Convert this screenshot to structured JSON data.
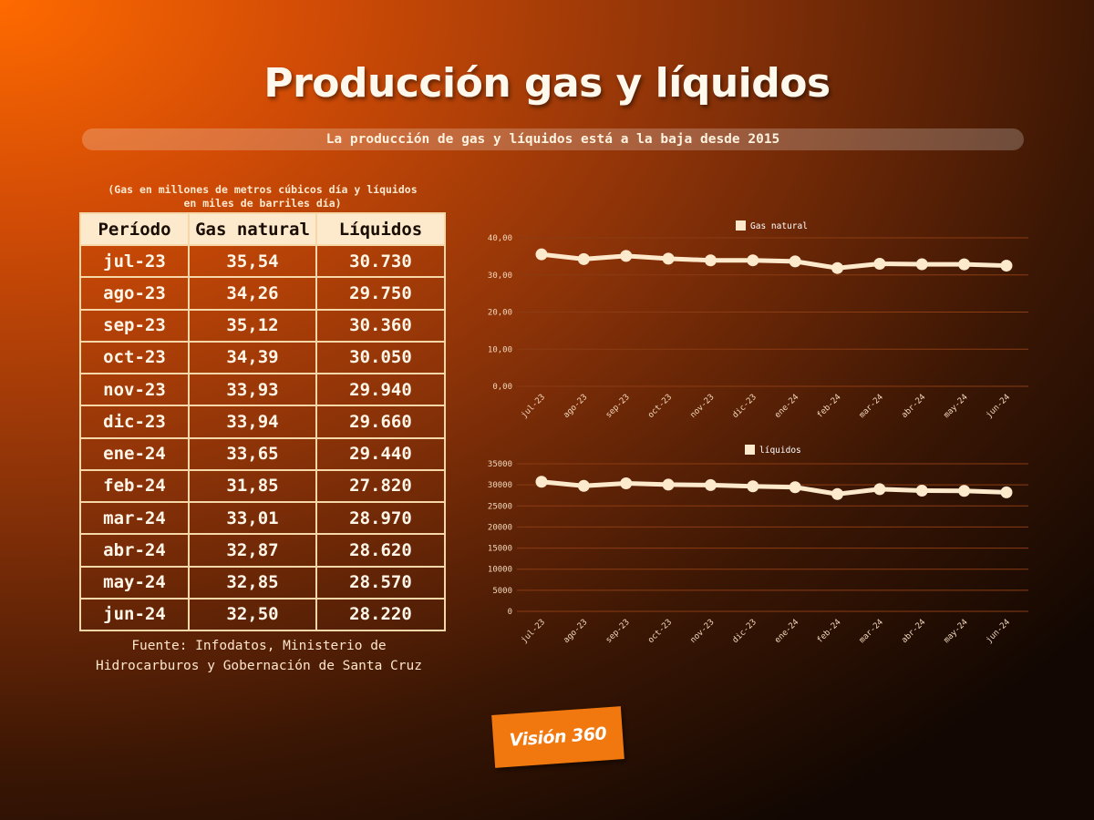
{
  "title": "Producción gas y líquidos",
  "subtitle": "La producción de gas y líquidos está a la baja desde 2015",
  "table": {
    "note_line1": "(Gas en millones de metros cúbicos día y líquidos",
    "note_line2": "en miles de barriles día)",
    "headers": [
      "Período",
      "Gas natural",
      "Líquidos"
    ],
    "rows": [
      [
        "jul-23",
        "35,54",
        "30.730"
      ],
      [
        "ago-23",
        "34,26",
        "29.750"
      ],
      [
        "sep-23",
        "35,12",
        "30.360"
      ],
      [
        "oct-23",
        "34,39",
        "30.050"
      ],
      [
        "nov-23",
        "33,93",
        "29.940"
      ],
      [
        "dic-23",
        "33,94",
        "29.660"
      ],
      [
        "ene-24",
        "33,65",
        "29.440"
      ],
      [
        "feb-24",
        "31,85",
        "27.820"
      ],
      [
        "mar-24",
        "33,01",
        "28.970"
      ],
      [
        "abr-24",
        "32,87",
        "28.620"
      ],
      [
        "may-24",
        "32,85",
        "28.570"
      ],
      [
        "jun-24",
        "32,50",
        "28.220"
      ]
    ]
  },
  "source_line1": "Fuente: Infodatos, Ministerio de",
  "source_line2": "Hidrocarburos y Gobernación de Santa Cruz",
  "logo_text": "Visión 360",
  "colors": {
    "line": "#fde9cc",
    "grid": "#8a3c14",
    "axis_text": "#f3d9bd"
  },
  "chart_data": [
    {
      "type": "line",
      "categories": [
        "jul-23",
        "ago-23",
        "sep-23",
        "oct-23",
        "nov-23",
        "dic-23",
        "ene-24",
        "feb-24",
        "mar-24",
        "abr-24",
        "may-24",
        "jun-24"
      ],
      "series": [
        {
          "name": "Gas natural",
          "values": [
            35.54,
            34.26,
            35.12,
            34.39,
            33.93,
            33.94,
            33.65,
            31.85,
            33.01,
            32.87,
            32.85,
            32.5
          ]
        }
      ],
      "yticks": [
        "0,00",
        "10,00",
        "20,00",
        "30,00",
        "40,00"
      ],
      "ylim": [
        0,
        40
      ],
      "legend": "top-center",
      "grid": true
    },
    {
      "type": "line",
      "categories": [
        "jul-23",
        "ago-23",
        "sep-23",
        "oct-23",
        "nov-23",
        "dic-23",
        "ene-24",
        "feb-24",
        "mar-24",
        "abr-24",
        "may-24",
        "jun-24"
      ],
      "series": [
        {
          "name": "líquidos",
          "values": [
            30730,
            29750,
            30360,
            30050,
            29940,
            29660,
            29440,
            27820,
            28970,
            28620,
            28570,
            28220
          ]
        }
      ],
      "yticks": [
        "0",
        "5000",
        "10000",
        "15000",
        "20000",
        "25000",
        "30000",
        "35000"
      ],
      "ylim": [
        0,
        35000
      ],
      "legend": "top-center",
      "grid": true
    }
  ]
}
